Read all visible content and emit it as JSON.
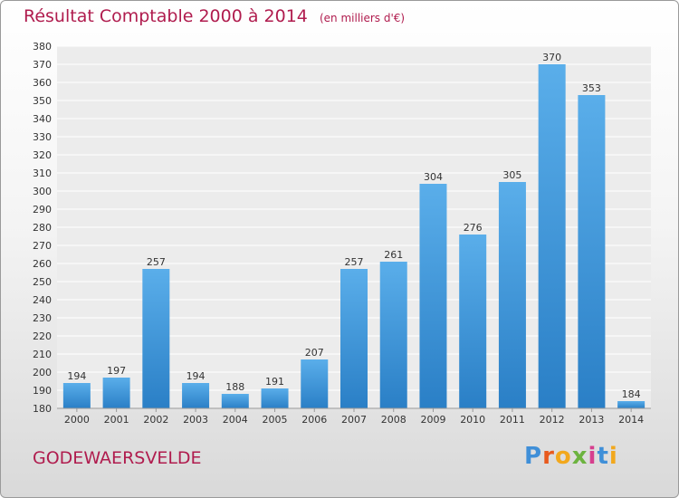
{
  "header": {
    "title": "Résultat Comptable 2000 à 2014",
    "subtitle": "(en milliers d'€)"
  },
  "footer": {
    "town": "GODEWAERSVELDE",
    "logo_letters": [
      "P",
      "r",
      "o",
      "x",
      "i",
      "t",
      "i"
    ],
    "logo_colors": [
      "#3f8fd8",
      "#e85a1e",
      "#f2a81d",
      "#6cb33f",
      "#d63f8e",
      "#3f8fd8",
      "#f2a81d"
    ]
  },
  "chart_data": {
    "type": "bar",
    "categories": [
      "2000",
      "2001",
      "2002",
      "2003",
      "2004",
      "2005",
      "2006",
      "2007",
      "2008",
      "2009",
      "2010",
      "2011",
      "2012",
      "2013",
      "2014"
    ],
    "values": [
      194,
      197,
      257,
      194,
      188,
      191,
      207,
      257,
      261,
      304,
      276,
      305,
      370,
      353,
      184
    ],
    "ylim": [
      180,
      380
    ],
    "yticks": [
      180,
      190,
      200,
      210,
      220,
      230,
      240,
      250,
      260,
      270,
      280,
      290,
      300,
      310,
      320,
      330,
      340,
      350,
      360,
      370,
      380
    ],
    "grid": true,
    "bar_color_top": "#5aaeea",
    "bar_color_bottom": "#2a7fc6"
  }
}
